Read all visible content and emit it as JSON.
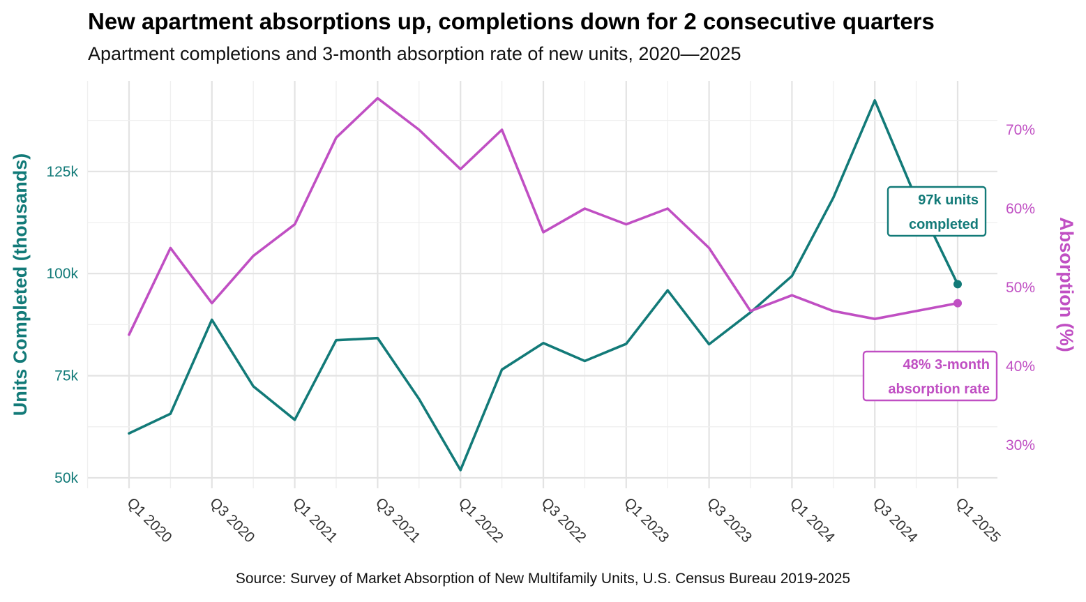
{
  "title": "New apartment absorptions up, completions down for 2 consecutive quarters",
  "subtitle": "Apartment completions and 3-month absorption rate of new units, 2020—2025",
  "caption": "Source: Survey of Market Absorption of New Multifamily Units, U.S. Census Bureau 2019-2025",
  "colors": {
    "completions": "#127a78",
    "absorption": "#c04fc3"
  },
  "chart_data": {
    "type": "line",
    "x": [
      "Q1 2020",
      "Q2 2020",
      "Q3 2020",
      "Q4 2020",
      "Q1 2021",
      "Q2 2021",
      "Q3 2021",
      "Q4 2021",
      "Q1 2022",
      "Q2 2022",
      "Q3 2022",
      "Q4 2022",
      "Q1 2023",
      "Q2 2023",
      "Q3 2023",
      "Q4 2023",
      "Q1 2024",
      "Q2 2024",
      "Q3 2024",
      "Q4 2024",
      "Q1 2025"
    ],
    "x_tick_labels": [
      "Q1 2020",
      "Q3 2020",
      "Q1 2021",
      "Q3 2021",
      "Q1 2022",
      "Q3 2022",
      "Q1 2023",
      "Q3 2023",
      "Q1 2024",
      "Q3 2024",
      "Q1 2025"
    ],
    "series": [
      {
        "key": "completions",
        "axis": "left",
        "values": [
          60.9,
          65.7,
          88.7,
          72.4,
          64.2,
          83.7,
          84.2,
          69.3,
          51.9,
          76.5,
          83.0,
          78.6,
          82.8,
          95.9,
          82.7,
          90.5,
          99.4,
          118.6,
          142.4,
          118.3,
          97.4
        ]
      },
      {
        "key": "absorption",
        "axis": "right",
        "values": [
          44,
          55,
          48,
          54,
          58,
          69,
          74,
          70,
          65,
          70,
          57,
          60,
          58,
          60,
          55,
          47,
          49,
          47,
          46,
          47,
          48
        ]
      }
    ],
    "left_axis": {
      "title": "Units Completed (thousands)",
      "ticks": [
        50,
        75,
        100,
        125
      ],
      "tick_labels": [
        "50k",
        "75k",
        "100k",
        "125k"
      ],
      "range": [
        48,
        145
      ]
    },
    "right_axis": {
      "title": "Absorption (%)",
      "ticks": [
        30,
        40,
        50,
        60,
        70
      ],
      "tick_labels": [
        "30%",
        "40%",
        "50%",
        "60%",
        "70%"
      ],
      "range": [
        25.8,
        75.8
      ]
    },
    "annotations": [
      {
        "series": "completions",
        "text_lines": [
          "97k units",
          "completed"
        ]
      },
      {
        "series": "absorption",
        "text_lines": [
          "48% 3-month",
          "absorption rate"
        ]
      }
    ]
  }
}
